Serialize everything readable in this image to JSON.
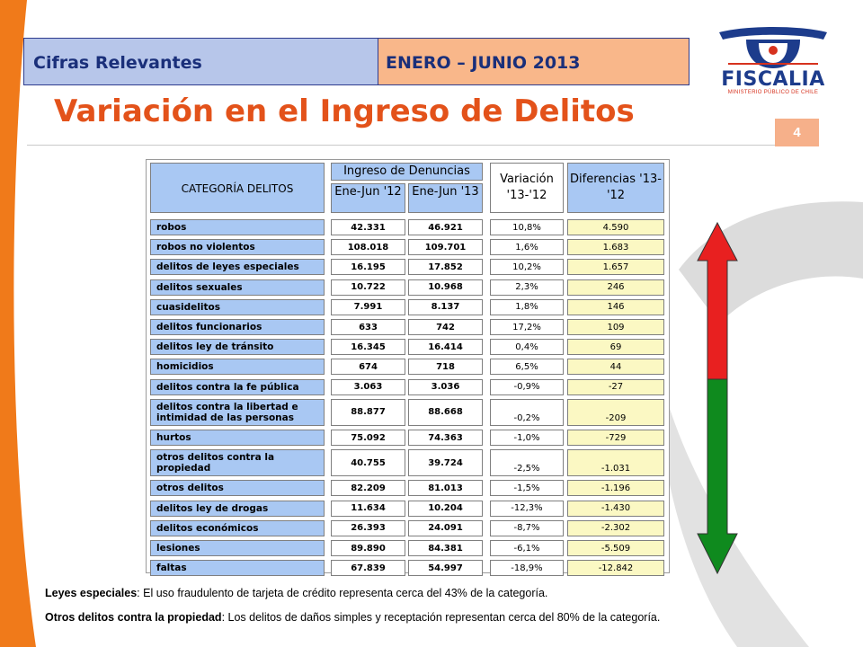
{
  "header": {
    "left_label": "Cifras Relevantes",
    "right_label": "ENERO – JUNIO 2013"
  },
  "title": "Variación en el Ingreso de Delitos",
  "page_number": "4",
  "logo": {
    "name": "FISCALIA",
    "subtitle": "MINISTERIO PÚBLICO DE CHILE"
  },
  "table": {
    "col_category": "CATEGORÍA  DELITOS",
    "col_group": "Ingreso de Denuncias",
    "col_2012": "Ene-Jun '12",
    "col_2013": "Ene-Jun '13",
    "col_var": "Variación '13-'12",
    "col_dif": "Diferencias '13-'12",
    "rows": [
      {
        "cat": "robos",
        "y12": "42.331",
        "y13": "46.921",
        "var": "10,8%",
        "dif": "4.590"
      },
      {
        "cat": "robos no violentos",
        "y12": "108.018",
        "y13": "109.701",
        "var": "1,6%",
        "dif": "1.683"
      },
      {
        "cat": "delitos de leyes especiales",
        "y12": "16.195",
        "y13": "17.852",
        "var": "10,2%",
        "dif": "1.657"
      },
      {
        "cat": "delitos sexuales",
        "y12": "10.722",
        "y13": "10.968",
        "var": "2,3%",
        "dif": "246"
      },
      {
        "cat": "cuasidelitos",
        "y12": "7.991",
        "y13": "8.137",
        "var": "1,8%",
        "dif": "146"
      },
      {
        "cat": "delitos funcionarios",
        "y12": "633",
        "y13": "742",
        "var": "17,2%",
        "dif": "109"
      },
      {
        "cat": "delitos ley de tránsito",
        "y12": "16.345",
        "y13": "16.414",
        "var": "0,4%",
        "dif": "69"
      },
      {
        "cat": "homicidios",
        "y12": "674",
        "y13": "718",
        "var": "6,5%",
        "dif": "44"
      },
      {
        "cat": "delitos contra la fe pública",
        "y12": "3.063",
        "y13": "3.036",
        "var": "-0,9%",
        "dif": "-27"
      },
      {
        "cat": "delitos contra la libertad e intimidad de las personas",
        "y12": "88.877",
        "y13": "88.668",
        "var": "-0,2%",
        "dif": "-209"
      },
      {
        "cat": "hurtos",
        "y12": "75.092",
        "y13": "74.363",
        "var": "-1,0%",
        "dif": "-729"
      },
      {
        "cat": "otros delitos contra la propiedad",
        "y12": "40.755",
        "y13": "39.724",
        "var": "-2,5%",
        "dif": "-1.031"
      },
      {
        "cat": "otros delitos",
        "y12": "82.209",
        "y13": "81.013",
        "var": "-1,5%",
        "dif": "-1.196"
      },
      {
        "cat": "delitos ley de drogas",
        "y12": "11.634",
        "y13": "10.204",
        "var": "-12,3%",
        "dif": "-1.430"
      },
      {
        "cat": "delitos económicos",
        "y12": "26.393",
        "y13": "24.091",
        "var": "-8,7%",
        "dif": "-2.302"
      },
      {
        "cat": "lesiones",
        "y12": "89.890",
        "y13": "84.381",
        "var": "-6,1%",
        "dif": "-5.509"
      },
      {
        "cat": "faltas",
        "y12": "67.839",
        "y13": "54.997",
        "var": "-18,9%",
        "dif": "-12.842"
      }
    ]
  },
  "colors": {
    "orange": "#e3521a",
    "header_blue": "#b7c6ea",
    "header_orange": "#f9b78a",
    "arrow_up": "#e82020",
    "arrow_down": "#0f8a1e"
  },
  "notes": {
    "note1_label": "Leyes especiales",
    "note1_text": ": El uso fraudulento de tarjeta de crédito representa cerca del 43% de la categoría.",
    "note2_label": "Otros delitos contra la propiedad",
    "note2_text": ": Los delitos de daños simples y receptación representan cerca del 80% de la categoría."
  }
}
